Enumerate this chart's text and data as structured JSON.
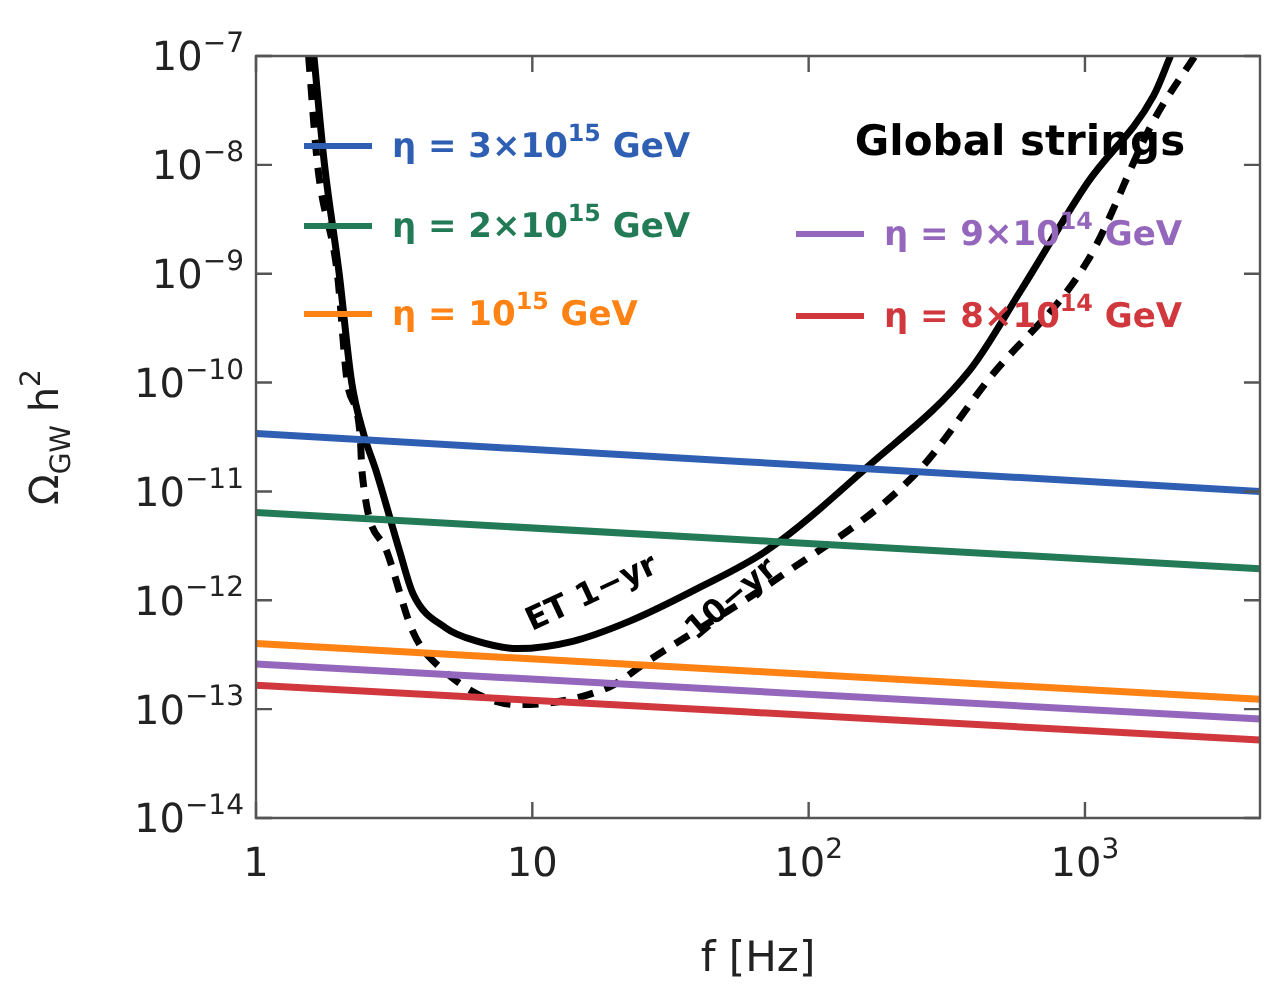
{
  "chart_data": {
    "type": "line",
    "title": "Global strings",
    "xlabel": "f [Hz]",
    "ylabel": "Ω$_{GW}$ h$^{2}$",
    "log": "xy",
    "legend": "top",
    "marker": "none",
    "xlim": [
      1,
      4300
    ],
    "ylim": [
      1e-14,
      1e-07
    ],
    "xticks": [
      1,
      10,
      {
        "value": 100,
        "label": "10$^{2}$"
      },
      {
        "value": 1000,
        "label": "10$^{3}$"
      }
    ],
    "yticks": [
      {
        "value": 1e-14,
        "label": "10$^{−14}$"
      },
      {
        "value": 1e-13,
        "label": "10$^{−13}$"
      },
      {
        "value": 1e-12,
        "label": "10$^{−12}$"
      },
      {
        "value": 1e-11,
        "label": "10$^{−11}$"
      },
      {
        "value": 1e-10,
        "label": "10$^{−10}$"
      },
      {
        "value": 1e-09,
        "label": "10$^{−9}$"
      },
      {
        "value": 1e-08,
        "label": "10$^{−8}$"
      },
      {
        "value": 1e-07,
        "label": "10$^{−7}$"
      }
    ],
    "series": [
      {
        "name": "η = 3×10$^{15}$ GeV",
        "color": "#2f5fb3",
        "x": [
          1,
          4300
        ],
        "values": [
          3.4e-11,
          1e-11
        ]
      },
      {
        "name": "η = 2×10$^{15}$ GeV",
        "color": "#237a57",
        "x": [
          1,
          4300
        ],
        "values": [
          6.4e-12,
          1.95e-12
        ]
      },
      {
        "name": "η = 10$^{15}$ GeV",
        "color": "#ff8214",
        "x": [
          1,
          4300
        ],
        "values": [
          4e-13,
          1.23e-13
        ]
      },
      {
        "name": "η = 9×10$^{14}$ GeV",
        "color": "#9467bd",
        "x": [
          1,
          4300
        ],
        "values": [
          2.6e-13,
          8.1e-14
        ]
      },
      {
        "name": "η = 8×10$^{14}$ GeV",
        "color": "#d1383d",
        "x": [
          1,
          4300
        ],
        "values": [
          1.66e-13,
          5.2e-14
        ]
      },
      {
        "name": "ET 1−yr",
        "color": "#000000",
        "line_style": "solid",
        "x": [
          1.62,
          1.77,
          2.0,
          2.22,
          2.45,
          2.73,
          3.3,
          3.7,
          4.85,
          6.35,
          8.9,
          14,
          22.4,
          40,
          71,
          164,
          383,
          590,
          1020,
          1770,
          2040
        ],
        "values": [
          1e-07,
          1e-08,
          1e-09,
          1e-10,
          3.4e-11,
          1.5e-11,
          2.9e-12,
          1.15e-12,
          5.6e-13,
          4.2e-13,
          3.6e-13,
          4.2e-13,
          6.4e-13,
          1.3e-12,
          2.9e-12,
          1.7e-11,
          1.3e-10,
          7.2e-10,
          6.8e-09,
          4.3e-08,
          1e-07
        ]
      },
      {
        "name": "10−yr",
        "color": "#000000",
        "line_style": "dashed",
        "x": [
          1.55,
          1.67,
          1.97,
          2.14,
          2.38,
          2.42,
          2.96,
          3.69,
          4.36,
          8.9,
          19,
          26.4,
          74.6,
          247,
          452,
          1020,
          1780,
          2500
        ],
        "values": [
          1e-07,
          1e-08,
          1e-09,
          1e-10,
          3.4e-11,
          1.5e-11,
          2.9e-12,
          5.2e-13,
          2.8e-13,
          1.1e-13,
          1.6e-13,
          2.8e-13,
          1.5e-12,
          1.5e-11,
          1.1e-10,
          1.3e-09,
          2.6e-08,
          1e-07
        ]
      }
    ]
  }
}
